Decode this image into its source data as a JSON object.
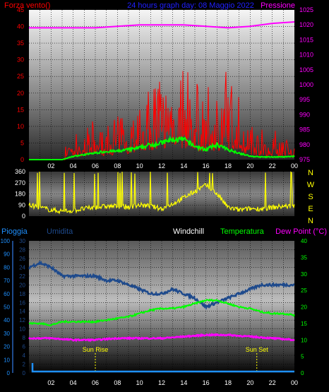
{
  "panel1": {
    "title": "24 hours graph day: 08 Maggio 2022",
    "left_label": "Forza vento()",
    "right_label": "Pressione",
    "left_axis": {
      "min": 0,
      "max": 45,
      "ticks": [
        "0",
        "5",
        "10",
        "15",
        "20",
        "25",
        "30",
        "35",
        "40",
        "45"
      ]
    },
    "right_axis": {
      "min": 975,
      "max": 1025,
      "ticks": [
        "975",
        "980",
        "985",
        "990",
        "995",
        "1000",
        "1005",
        "1010",
        "1015",
        "1020",
        "1025"
      ]
    }
  },
  "panel2": {
    "left_axis": {
      "min": 0,
      "max": 360,
      "ticks": [
        "0",
        "90",
        "180",
        "270",
        "360"
      ]
    },
    "compass": [
      "N",
      "W",
      "S",
      "E",
      "N"
    ]
  },
  "panel3": {
    "labels": {
      "pioggia": "Pioggia",
      "umidita": "Umidita",
      "windchill": "Windchill",
      "temperatura": "Temperatura",
      "dewpoint": "Dew Point (°C)"
    },
    "pioggia_axis": [
      "0",
      "10",
      "20",
      "30",
      "40",
      "50",
      "60",
      "70",
      "80",
      "90",
      "100"
    ],
    "umidita_axis": [
      "0",
      "2",
      "4",
      "6",
      "8",
      "10",
      "12",
      "14",
      "16",
      "18",
      "20",
      "22",
      "24",
      "26",
      "28",
      "30"
    ],
    "temp_axis": [
      "0",
      "5",
      "10",
      "15",
      "20",
      "25",
      "30",
      "35",
      "40"
    ],
    "sun_rise": "Sun Rise",
    "sun_set": "Sun Set"
  },
  "time_ticks": [
    "02",
    "04",
    "06",
    "08",
    "10",
    "12",
    "14",
    "16",
    "18",
    "20",
    "22",
    "00"
  ],
  "colors": {
    "wind": "#ff0000",
    "wind_avg": "#00ff00",
    "pressure": "#ff00ff",
    "direction": "#ffff00",
    "humidity": "#1e4a8c",
    "temperature": "#00ff00",
    "dewpoint": "#ff00ff",
    "rain": "#1e90ff",
    "title": "#2020ff",
    "tick": "#ffffff"
  },
  "chart_data": [
    {
      "type": "line",
      "title": "24 hours graph day: 08 Maggio 2022",
      "x_unit": "hour",
      "x_range": [
        0,
        24
      ],
      "ylabel": "Forza vento()",
      "y2label": "Pressione",
      "ylim": [
        0,
        45
      ],
      "y2lim": [
        975,
        1025
      ],
      "series": [
        {
          "name": "",
          "axis": "left",
          "x": [
            0,
            1,
            2,
            3,
            4,
            5,
            6,
            7,
            8,
            9,
            10,
            11,
            12,
            13,
            14,
            15,
            16,
            17,
            18,
            19,
            20,
            21,
            22,
            23,
            24
          ],
          "values": [
            0,
            0,
            0,
            3,
            6,
            7,
            8,
            8,
            10,
            12,
            16,
            18,
            20,
            25,
            22,
            18,
            15,
            17,
            20,
            14,
            10,
            8,
            7,
            6,
            5
          ]
        },
        {
          "name": "",
          "axis": "left",
          "x": [
            0,
            1,
            2,
            3,
            4,
            5,
            6,
            7,
            8,
            9,
            10,
            11,
            12,
            13,
            14,
            15,
            16,
            17,
            18,
            19,
            20,
            21,
            22,
            23,
            24
          ],
          "values": [
            0,
            0,
            0,
            0,
            1,
            1.5,
            2,
            2.5,
            2.5,
            3,
            3.5,
            4.5,
            5,
            6,
            6,
            4,
            3,
            4.5,
            3,
            2,
            1,
            0.8,
            0.8,
            0.8,
            1
          ]
        },
        {
          "name": "Pressione",
          "axis": "right",
          "x": [
            0,
            2,
            4,
            6,
            8,
            10,
            12,
            14,
            16,
            18,
            20,
            22,
            24
          ],
          "values": [
            1019,
            1019,
            1019,
            1019,
            1019.5,
            1020,
            1020,
            1020,
            1019.5,
            1019,
            1019.5,
            1020.5,
            1021
          ]
        }
      ]
    },
    {
      "type": "line",
      "x_unit": "hour",
      "x_range": [
        0,
        24
      ],
      "ylim": [
        0,
        360
      ],
      "series": [
        {
          "name": "",
          "x": [
            0,
            1,
            2,
            3,
            4,
            5,
            6,
            7,
            8,
            9,
            10,
            11,
            12,
            13,
            14,
            15,
            16,
            17,
            18,
            19,
            20,
            21,
            22,
            23,
            24
          ],
          "values": [
            90,
            70,
            50,
            40,
            45,
            60,
            70,
            80,
            80,
            75,
            90,
            80,
            60,
            100,
            150,
            200,
            250,
            180,
            70,
            50,
            60,
            60,
            70,
            80,
            80
          ]
        }
      ]
    },
    {
      "type": "line",
      "x_unit": "hour",
      "x_range": [
        0,
        24
      ],
      "series": [
        {
          "name": "Umidita",
          "axis": "umidita",
          "x": [
            0,
            1,
            2,
            3,
            4,
            5,
            6,
            7,
            8,
            9,
            10,
            11,
            12,
            13,
            14,
            15,
            16,
            17,
            18,
            19,
            20,
            21,
            22,
            23,
            24
          ],
          "values": [
            24,
            25,
            24,
            22,
            22,
            22,
            22,
            21,
            21,
            20,
            19,
            18,
            18,
            19,
            18,
            17,
            15,
            16,
            17,
            18,
            19,
            20,
            20,
            20,
            20
          ]
        },
        {
          "name": "Temperatura",
          "axis": "temp",
          "x": [
            0,
            1,
            2,
            3,
            4,
            5,
            6,
            7,
            8,
            9,
            10,
            11,
            12,
            13,
            14,
            15,
            16,
            17,
            18,
            19,
            20,
            21,
            22,
            23,
            24
          ],
          "values": [
            15,
            15,
            14.5,
            15.5,
            15.5,
            15.5,
            15.5,
            16,
            16.5,
            17,
            18,
            19,
            19.5,
            19.5,
            20,
            21,
            22,
            22,
            21,
            20,
            19.5,
            18.5,
            18,
            18,
            17.5
          ]
        },
        {
          "name": "Dew Point (°C)",
          "axis": "temp",
          "x": [
            0,
            2,
            4,
            6,
            8,
            10,
            12,
            14,
            16,
            18,
            20,
            22,
            24
          ],
          "values": [
            10.5,
            10.5,
            10,
            10,
            10.5,
            10.5,
            10.5,
            11,
            11.5,
            11.5,
            11,
            10.5,
            10
          ]
        },
        {
          "name": "Pioggia",
          "axis": "pioggia",
          "x": [
            0,
            24
          ],
          "values": [
            0,
            0
          ]
        }
      ]
    }
  ]
}
